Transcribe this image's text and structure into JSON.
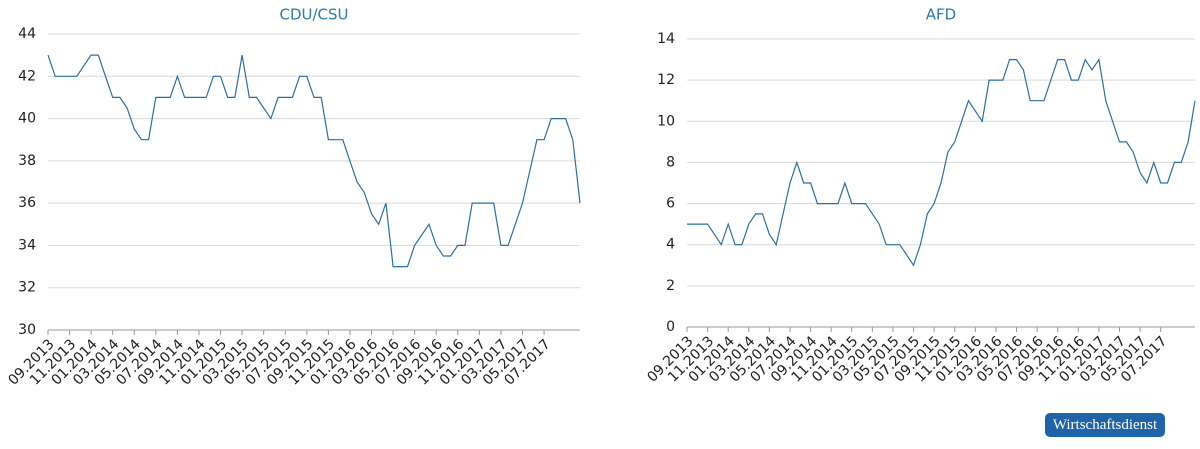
{
  "chart_data": [
    {
      "type": "line",
      "title": "CDU/CSU",
      "color": "#2a6fa8",
      "grid": true,
      "ylim": [
        30,
        44
      ],
      "yticks": [
        30,
        32,
        34,
        36,
        38,
        40,
        42,
        44
      ],
      "categories": [
        "09.2013",
        null,
        null,
        "11.2013",
        null,
        null,
        "01.2014",
        null,
        null,
        "03.2014",
        null,
        null,
        "05.2014",
        null,
        null,
        "07.2014",
        null,
        null,
        "09.2014",
        null,
        null,
        "11.2014",
        null,
        null,
        "01.2015",
        null,
        null,
        "03.2015",
        null,
        null,
        "05.2015",
        null,
        null,
        "07.2015",
        null,
        null,
        "09.2015",
        null,
        null,
        "11.2015",
        null,
        null,
        "01.2016",
        null,
        null,
        "03.2016",
        null,
        null,
        "05.2016",
        null,
        null,
        "07.2016",
        null,
        null,
        "09.2016",
        null,
        null,
        "11.2016",
        null,
        null,
        "01.2017",
        null,
        null,
        "03.2017",
        null,
        null,
        "05.2017",
        null,
        null,
        "07.2017",
        null,
        null,
        null,
        null,
        null
      ],
      "values": [
        43,
        42,
        42,
        42,
        42,
        42.5,
        43,
        43,
        42,
        41,
        41,
        40.5,
        39.5,
        39,
        39,
        41,
        41,
        41,
        42,
        41,
        41,
        41,
        41,
        42,
        42,
        41,
        41,
        43,
        41,
        41,
        40.5,
        40,
        41,
        41,
        41,
        42,
        42,
        41,
        41,
        39,
        39,
        39,
        38,
        37,
        36.5,
        35.5,
        35,
        36,
        33,
        33,
        33,
        34,
        34.5,
        35,
        34,
        33.5,
        33.5,
        34,
        34,
        36,
        36,
        36,
        36,
        34,
        34,
        35,
        36,
        37.5,
        39,
        39,
        40,
        40,
        40,
        39,
        36
      ]
    },
    {
      "type": "line",
      "title": "AFD",
      "color": "#2a6fa8",
      "grid": true,
      "ylim": [
        0,
        14
      ],
      "yticks": [
        0,
        2,
        4,
        6,
        8,
        10,
        12,
        14
      ],
      "categories": [
        "09.2013",
        null,
        null,
        "11.2013",
        null,
        null,
        "01.2014",
        null,
        null,
        "03.2014",
        null,
        null,
        "05.2014",
        null,
        null,
        "07.2014",
        null,
        null,
        "09.2014",
        null,
        null,
        "11.2014",
        null,
        null,
        "01.2015",
        null,
        null,
        "03.2015",
        null,
        null,
        "05.2015",
        null,
        null,
        "07.2015",
        null,
        null,
        "09.2015",
        null,
        null,
        "11.2015",
        null,
        null,
        "01.2016",
        null,
        null,
        "03.2016",
        null,
        null,
        "05.2016",
        null,
        null,
        "07.2016",
        null,
        null,
        "09.2016",
        null,
        null,
        "11.2016",
        null,
        null,
        "01.2017",
        null,
        null,
        "03.2017",
        null,
        null,
        "05.2017",
        null,
        null,
        "07.2017",
        null,
        null,
        null,
        null,
        null
      ],
      "values": [
        5,
        5,
        5,
        5,
        4.5,
        4,
        5,
        4,
        4,
        5,
        5.5,
        5.5,
        4.5,
        4,
        5.5,
        7,
        8,
        7,
        7,
        6,
        6,
        6,
        6,
        7,
        6,
        6,
        6,
        5.5,
        5,
        4,
        4,
        4,
        3.5,
        3,
        4,
        5.5,
        6,
        7,
        8.5,
        9,
        10,
        11,
        10.5,
        10,
        12,
        12,
        12,
        13,
        13,
        12.5,
        11,
        11,
        11,
        12,
        13,
        13,
        12,
        12,
        13,
        12.5,
        13,
        11,
        10,
        9,
        9,
        8.5,
        7.5,
        7,
        8,
        7,
        7,
        8,
        8,
        9,
        11
      ]
    }
  ],
  "badge": "Wirtschaftsdienst"
}
